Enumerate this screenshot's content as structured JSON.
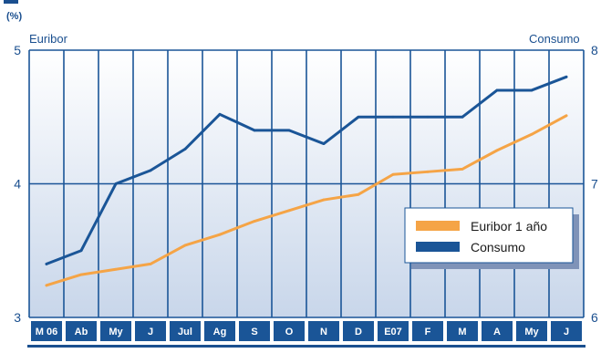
{
  "chart_data": {
    "type": "line",
    "unit_label": "(%)",
    "left_axis_label": "Euribor",
    "right_axis_label": "Consumo",
    "categories": [
      "M 06",
      "Ab",
      "My",
      "J",
      "Jul",
      "Ag",
      "S",
      "O",
      "N",
      "D",
      "E07",
      "F",
      "M",
      "A",
      "My",
      "J"
    ],
    "y_left": {
      "ticks": [
        "3",
        "4",
        "5"
      ],
      "range": [
        3,
        5
      ]
    },
    "y_right": {
      "ticks": [
        "6",
        "7",
        "8"
      ],
      "range": [
        6,
        8
      ]
    },
    "series": [
      {
        "name": "Euribor 1 año",
        "axis": "left",
        "color": "#f5a446",
        "values": [
          3.24,
          3.32,
          3.36,
          3.4,
          3.54,
          3.62,
          3.72,
          3.8,
          3.88,
          3.92,
          4.07,
          4.09,
          4.11,
          4.25,
          4.37,
          4.51
        ]
      },
      {
        "name": "Consumo",
        "axis": "right",
        "color": "#1a5597",
        "values": [
          6.4,
          6.5,
          7.0,
          7.1,
          7.26,
          7.52,
          7.4,
          7.4,
          7.3,
          7.5,
          7.5,
          7.5,
          7.5,
          7.7,
          7.7,
          7.8
        ]
      }
    ],
    "grid": true,
    "legend_position": "inside-right"
  }
}
